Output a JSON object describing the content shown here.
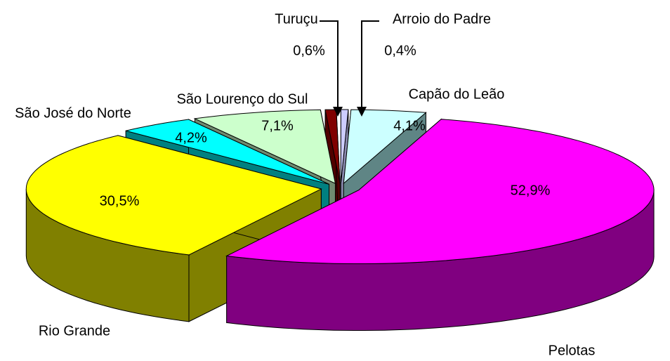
{
  "chart_data": {
    "type": "pie3d",
    "categories": [
      "Arroio do Padre",
      "Capão do Leão",
      "Pelotas",
      "Rio Grande",
      "São José do Norte",
      "São Lourenço do Sul",
      "Turuçu"
    ],
    "values": [
      0.4,
      4.1,
      52.9,
      30.5,
      4.2,
      7.1,
      0.6
    ],
    "value_labels": [
      "0,4%",
      "4,1%",
      "52,9%",
      "30,5%",
      "4,2%",
      "7,1%",
      "0,6%"
    ],
    "colors": [
      "#ccccff",
      "#ccffff",
      "#ff00ff",
      "#ffff00",
      "#00ffff",
      "#ccffcc",
      "#800000"
    ],
    "side_colors": [
      "#8a8ab0",
      "#5f8585",
      "#800080",
      "#808000",
      "#008080",
      "#6f8a6f",
      "#500000"
    ]
  }
}
